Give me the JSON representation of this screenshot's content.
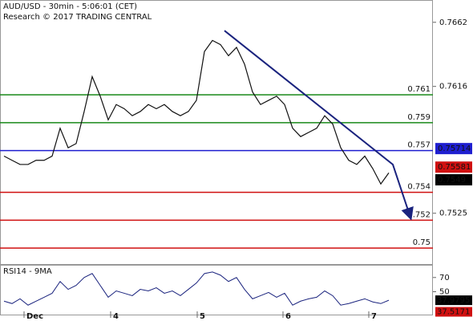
{
  "chart_data": {
    "type": "line",
    "title": "AUD/USD - 30min - 5:06:01 (CET)",
    "subtitle": "Research © 2017 TRADING CENTRAL",
    "x": [
      0,
      1,
      2,
      3,
      4,
      5,
      6,
      7,
      8,
      9,
      10,
      11,
      12,
      13,
      14,
      15,
      16,
      17,
      18,
      19,
      20,
      21,
      22,
      23,
      24,
      25,
      26,
      27,
      28,
      29,
      30,
      31,
      32,
      33,
      34,
      35,
      36,
      37,
      38,
      39,
      40,
      41,
      42,
      43,
      44,
      45,
      46,
      47,
      48
    ],
    "xlim": [
      -0.5,
      53.5
    ],
    "xticks": [
      {
        "value": 2.5,
        "label": "Dec"
      },
      {
        "value": 13.3,
        "label": "4"
      },
      {
        "value": 24.1,
        "label": "5"
      },
      {
        "value": 34.8,
        "label": "6"
      },
      {
        "value": 45.5,
        "label": "7"
      }
    ],
    "series": [
      {
        "color": "#111111",
        "values": [
          0.7566,
          0.7563,
          0.756,
          0.756,
          0.7563,
          0.7563,
          0.7566,
          0.7586,
          0.7572,
          0.7575,
          0.7598,
          0.7623,
          0.7609,
          0.7592,
          0.7603,
          0.76,
          0.7595,
          0.7598,
          0.7603,
          0.76,
          0.7603,
          0.7598,
          0.7595,
          0.7598,
          0.7606,
          0.7641,
          0.7649,
          0.7646,
          0.7638,
          0.7644,
          0.7632,
          0.7612,
          0.7603,
          0.7606,
          0.7609,
          0.7603,
          0.7586,
          0.758,
          0.7583,
          0.7586,
          0.7595,
          0.7589,
          0.7572,
          0.7563,
          0.756,
          0.7566,
          0.7557,
          0.7546,
          0.7554
        ]
      }
    ],
    "ylim": [
      0.7488,
      0.7678
    ],
    "yticks": [
      0.7662,
      0.7616,
      0.7525
    ],
    "levels": [
      {
        "value": 0.761,
        "color": "#1a8a1a"
      },
      {
        "value": 0.759,
        "color": "#1a8a1a"
      },
      {
        "value": 0.757,
        "color": "#1f1fd0"
      },
      {
        "value": 0.754,
        "color": "#d01010"
      },
      {
        "value": 0.752,
        "color": "#d01010"
      },
      {
        "value": 0.75,
        "color": "#d01010"
      }
    ],
    "trendline": {
      "color": "#1a237e",
      "x": [
        27.5,
        48.5,
        50.7
      ],
      "y": [
        0.7656,
        0.756,
        0.7522
      ]
    },
    "price_markers": [
      {
        "value": 0.75714,
        "color": "#1f1fd0"
      },
      {
        "value": 0.75581,
        "color": "#d01010"
      },
      {
        "value": 0.7549,
        "color": "#000000"
      }
    ],
    "rsi": {
      "label": "RSI14 - 9MA",
      "color": "#1a237e",
      "values": [
        36.7,
        33.3,
        40,
        31.1,
        36.7,
        42.2,
        47.8,
        64.4,
        53.3,
        58.9,
        70,
        75.6,
        58.9,
        42.2,
        51.1,
        47.8,
        44.4,
        53.3,
        51.1,
        55.6,
        47.8,
        51.1,
        44.4,
        53.3,
        62.2,
        75.6,
        77.8,
        73.3,
        64.4,
        70,
        53.3,
        40,
        44.4,
        48.9,
        42.2,
        47.8,
        31.1,
        36.7,
        40,
        42.2,
        51.1,
        44.4,
        31.1,
        33.3,
        36.7,
        40,
        35.6,
        33.3,
        37.9795
      ],
      "ylim": [
        17.8,
        86.7
      ],
      "yticks": [
        70,
        50
      ],
      "markers": [
        {
          "value": 37.9795,
          "color": "#000000"
        },
        {
          "value": 37.5171,
          "color": "#d01010"
        }
      ]
    }
  }
}
